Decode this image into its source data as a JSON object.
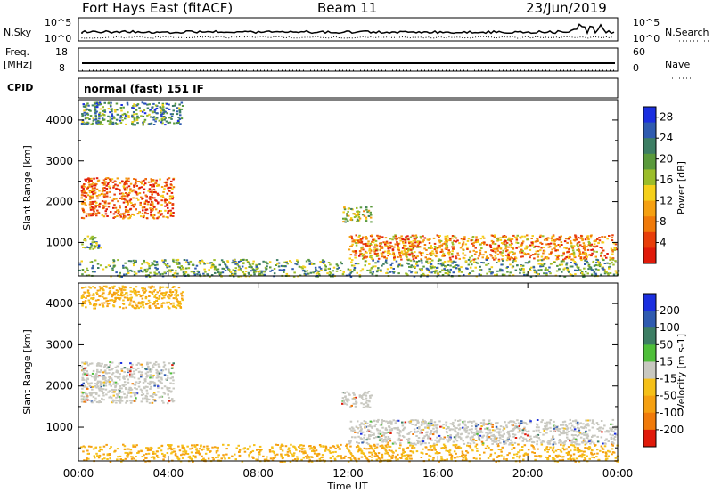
{
  "header": {
    "radar": "Fort Hays East (fitACF)",
    "beam": "Beam 11",
    "date": "23/Jun/2019"
  },
  "noise_panel": {
    "left_label": "N.Sky",
    "left_ticks": [
      "10^5",
      "10^0"
    ],
    "right_ticks": [
      "10^5",
      "10^0"
    ],
    "right_label": "N.Search"
  },
  "freq_panel": {
    "left_label_1": "Freq.",
    "left_label_2": "[MHz]",
    "left_ticks": [
      "18",
      "8"
    ],
    "right_ticks": [
      "60",
      "0"
    ],
    "right_label": "Nave"
  },
  "cpid": {
    "label": "CPID",
    "text": "normal (fast) 151 IF"
  },
  "chart_data": [
    {
      "type": "heatmap",
      "title": "",
      "xlabel": "",
      "ylabel": "Slant Range [km]",
      "xlim": [
        "00:00",
        "24:00"
      ],
      "ylim": [
        180,
        4500
      ],
      "y_ticks": [
        "1000",
        "2000",
        "3000",
        "4000"
      ],
      "colorbar": {
        "label": "Power [dB]",
        "ticks": [
          "4",
          "8",
          "12",
          "16",
          "20",
          "24",
          "28"
        ],
        "range": [
          0,
          30
        ],
        "colors": [
          "#1b2fe0",
          "#2f5bb0",
          "#3d7e64",
          "#5a9a3c",
          "#9bbd2a",
          "#f5d01a",
          "#f5a011",
          "#f07a0a",
          "#e83e0a",
          "#e01a0a"
        ]
      },
      "echo_regions": [
        {
          "t0": 0.1,
          "t1": 4.2,
          "r0": 1600,
          "r1": 2600,
          "level": 0.8
        },
        {
          "t0": 0.1,
          "t1": 4.6,
          "r0": 3900,
          "r1": 4450,
          "level": 0.3
        },
        {
          "t0": 0.1,
          "t1": 1.0,
          "r0": 850,
          "r1": 1200,
          "level": 0.3
        },
        {
          "t0": 11.7,
          "t1": 13.0,
          "r0": 1500,
          "r1": 1900,
          "level": 0.5
        },
        {
          "t0": 12.0,
          "t1": 23.9,
          "r0": 600,
          "r1": 1200,
          "level": 0.7
        },
        {
          "t0": 0.0,
          "t1": 24.0,
          "r0": 180,
          "r1": 600,
          "level": 0.35
        }
      ]
    },
    {
      "type": "heatmap",
      "title": "",
      "xlabel": "Time UT",
      "ylabel": "Slant Range [km]",
      "xlim": [
        "00:00",
        "24:00"
      ],
      "ylim": [
        180,
        4500
      ],
      "y_ticks": [
        "1000",
        "2000",
        "3000",
        "4000"
      ],
      "x_ticks": [
        "00:00",
        "04:00",
        "08:00",
        "12:00",
        "16:00",
        "20:00",
        "00:00"
      ],
      "colorbar": {
        "label": "Velocity [m s-1]",
        "ticks": [
          "200",
          "100",
          "50",
          "15",
          "-15",
          "-50",
          "-100",
          "-200"
        ],
        "range": [
          -250,
          250
        ],
        "colors": [
          "#1b2fe0",
          "#2f5bb0",
          "#3d7e64",
          "#4fbf3a",
          "#c8c8c0",
          "#f5c018",
          "#f5a011",
          "#f07a0a",
          "#e01a0a"
        ]
      },
      "echo_regions": [
        {
          "t0": 0.1,
          "t1": 4.2,
          "r0": 1600,
          "r1": 2600,
          "vel": 0
        },
        {
          "t0": 0.1,
          "t1": 4.6,
          "r0": 3900,
          "r1": 4450,
          "vel": -40
        },
        {
          "t0": 11.7,
          "t1": 13.0,
          "r0": 1500,
          "r1": 1900,
          "vel": 0
        },
        {
          "t0": 12.0,
          "t1": 23.9,
          "r0": 600,
          "r1": 1200,
          "vel": 0
        },
        {
          "t0": 0.0,
          "t1": 24.0,
          "r0": 180,
          "r1": 600,
          "vel": -60
        }
      ]
    }
  ],
  "colors": {
    "axis": "#000000",
    "background": "#ffffff",
    "ground_scatter": "#c8c8c0"
  }
}
